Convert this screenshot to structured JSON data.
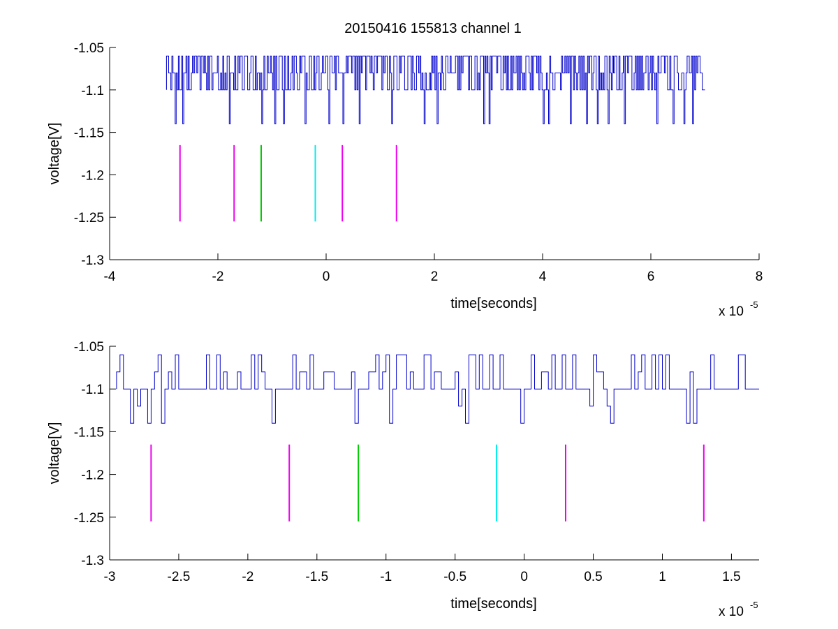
{
  "figure": {
    "title": "20150416 155813 channel 1"
  },
  "colors": {
    "signal": "#0000cc",
    "marker_magenta": "#ee00ee",
    "marker_green": "#00cc00",
    "marker_cyan": "#00eeee",
    "axis": "#000000"
  },
  "chart_data": [
    {
      "type": "line",
      "title": "20150416 155813 channel 1",
      "xlabel": "time[seconds]",
      "ylabel": "voltage[V]",
      "x_multiplier_label": "x 10",
      "x_multiplier_exponent": "-5",
      "xlim": [
        -4,
        8
      ],
      "ylim": [
        -1.3,
        -1.05
      ],
      "x_ticks": [
        -4,
        -2,
        0,
        2,
        4,
        6,
        8
      ],
      "x_tick_labels": [
        "-4",
        "-2",
        "0",
        "2",
        "4",
        "6",
        "8"
      ],
      "y_ticks": [
        -1.05,
        -1.1,
        -1.15,
        -1.2,
        -1.25,
        -1.3
      ],
      "y_tick_labels": [
        "-1.05",
        "-1.1",
        "-1.15",
        "-1.2",
        "-1.25",
        "-1.3"
      ],
      "grid": false,
      "signal": {
        "x_range": [
          -2.95,
          7.0
        ],
        "levels": [
          -1.06,
          -1.08,
          -1.1,
          -1.14
        ],
        "baseline": -1.1,
        "dips": [
          -2.8,
          -2.65,
          -1.8,
          -1.2,
          -0.95,
          -0.8,
          -0.4,
          0.05,
          0.3,
          0.6,
          1.2,
          1.8,
          2.05,
          2.9,
          3.0,
          4.0,
          4.1,
          4.5,
          4.8,
          5.0,
          5.2,
          5.5,
          6.1,
          6.4,
          6.6,
          6.75
        ]
      },
      "markers": [
        {
          "x": -2.7,
          "y_range": [
            -1.255,
            -1.165
          ],
          "color": "magenta"
        },
        {
          "x": -1.7,
          "y_range": [
            -1.255,
            -1.165
          ],
          "color": "magenta"
        },
        {
          "x": -1.2,
          "y_range": [
            -1.255,
            -1.165
          ],
          "color": "green"
        },
        {
          "x": -0.2,
          "y_range": [
            -1.255,
            -1.165
          ],
          "color": "cyan"
        },
        {
          "x": 0.3,
          "y_range": [
            -1.255,
            -1.165
          ],
          "color": "magenta"
        },
        {
          "x": 1.3,
          "y_range": [
            -1.255,
            -1.165
          ],
          "color": "magenta"
        }
      ]
    },
    {
      "type": "line",
      "xlabel": "time[seconds]",
      "ylabel": "voltage[V]",
      "x_multiplier_label": "x 10",
      "x_multiplier_exponent": "-5",
      "xlim": [
        -3.0,
        1.7
      ],
      "ylim": [
        -1.3,
        -1.05
      ],
      "x_ticks": [
        -3,
        -2.5,
        -2,
        -1.5,
        -1,
        -0.5,
        0,
        0.5,
        1,
        1.5
      ],
      "x_tick_labels": [
        "-3",
        "-2.5",
        "-2",
        "-1.5",
        "-1",
        "-0.5",
        "0",
        "0.5",
        "1",
        "1.5"
      ],
      "y_ticks": [
        -1.05,
        -1.1,
        -1.15,
        -1.2,
        -1.25,
        -1.3
      ],
      "y_tick_labels": [
        "-1.05",
        "-1.1",
        "-1.15",
        "-1.2",
        "-1.25",
        "-1.3"
      ],
      "grid": false,
      "signal": {
        "x_range": [
          -2.95,
          1.7
        ],
        "levels": [
          -1.06,
          -1.08,
          -1.1,
          -1.12,
          -1.14
        ],
        "baseline": -1.1,
        "dips": [
          -2.87,
          -2.82,
          -2.73,
          -2.63,
          -1.83,
          -1.25,
          -0.99,
          -0.5,
          -0.45,
          -0.05,
          0.45,
          0.59,
          0.62,
          1.15,
          1.2
        ]
      },
      "markers": [
        {
          "x": -2.7,
          "y_range": [
            -1.255,
            -1.165
          ],
          "color": "magenta"
        },
        {
          "x": -1.7,
          "y_range": [
            -1.255,
            -1.165
          ],
          "color": "magenta"
        },
        {
          "x": -1.2,
          "y_range": [
            -1.255,
            -1.165
          ],
          "color": "green"
        },
        {
          "x": -0.2,
          "y_range": [
            -1.255,
            -1.165
          ],
          "color": "cyan"
        },
        {
          "x": 0.3,
          "y_range": [
            -1.255,
            -1.165
          ],
          "color": "magenta"
        },
        {
          "x": 1.3,
          "y_range": [
            -1.255,
            -1.165
          ],
          "color": "magenta"
        }
      ]
    }
  ]
}
